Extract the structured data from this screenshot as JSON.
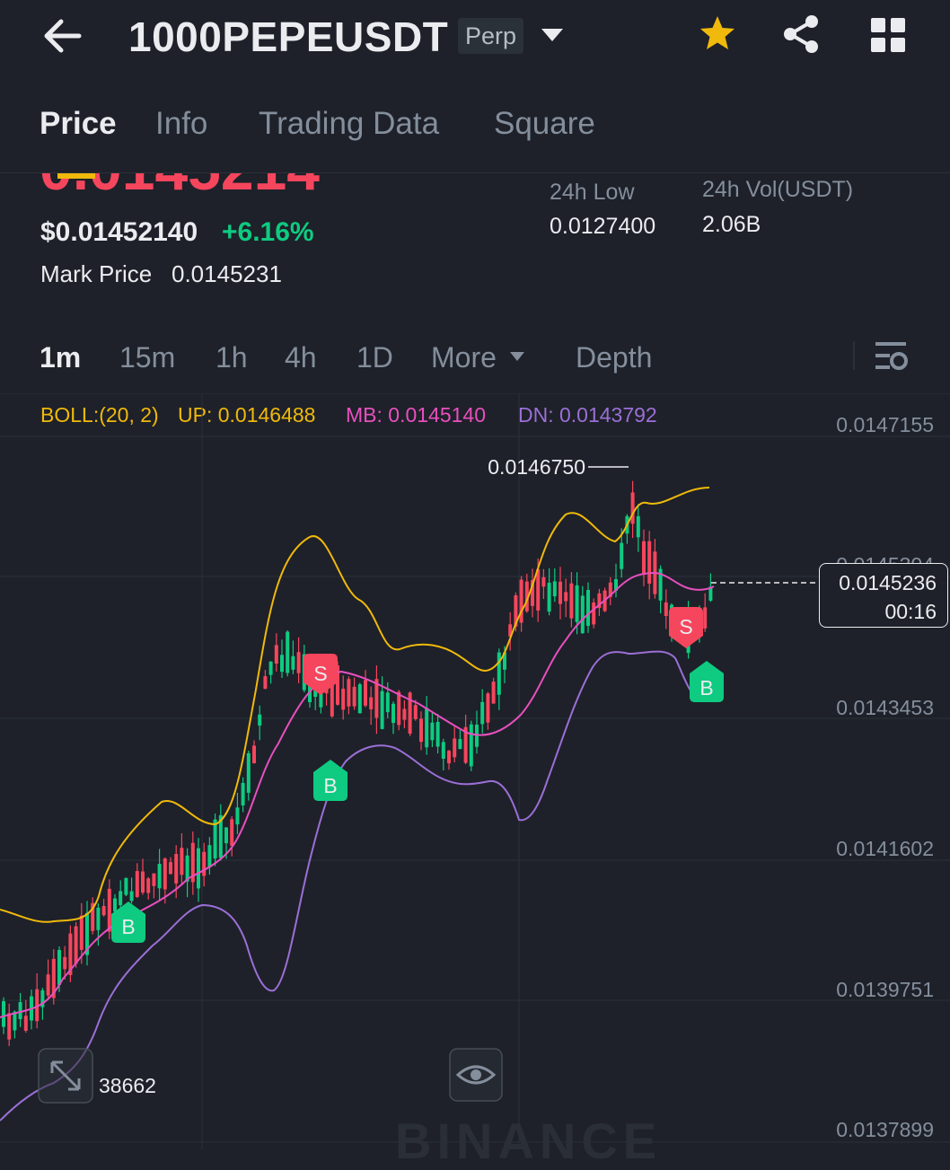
{
  "header": {
    "symbol": "1000PEPEUSDT",
    "contract_badge": "Perp",
    "icons": [
      "back-arrow-icon",
      "dropdown-caret-icon",
      "star-icon",
      "share-icon",
      "grid-icon"
    ]
  },
  "tabs": [
    "Price",
    "Info",
    "Trading Data",
    "Square"
  ],
  "price": {
    "last_price_partial": "0.0145214",
    "usd_price": "$0.01452140",
    "change_pct": "+6.16%",
    "mark_label": "Mark Price",
    "mark_value": "0.0145231",
    "low_label": "24h Low",
    "low_value": "0.0127400",
    "vol_label": "24h Vol(USDT)",
    "vol_value": "2.06B"
  },
  "intervals": [
    "1m",
    "15m",
    "1h",
    "4h",
    "1D",
    "More",
    "Depth"
  ],
  "indicators": {
    "boll": "BOLL:(20, 2)",
    "up": "UP: 0.0146488",
    "mb": "MB: 0.0145140",
    "dn": "DN: 0.0143792"
  },
  "chart": {
    "y_axis_labels": [
      "0.0147155",
      "0.0145304",
      "0.0143453",
      "0.0141602",
      "0.0139751",
      "0.0137899"
    ],
    "high_marker": "0.0146750",
    "current_price": "0.0145236",
    "countdown": "00:16",
    "watermark": "BINANCE",
    "volume_label_partial": "38662",
    "trade_markers": [
      "B",
      "S",
      "B",
      "S",
      "B"
    ]
  },
  "colors": {
    "up": "#0ecb81",
    "down": "#f6465d",
    "boll_up": "#f0b90b",
    "boll_mb": "#e84fbf",
    "boll_dn": "#9b6fd6",
    "background": "#1e2129"
  }
}
